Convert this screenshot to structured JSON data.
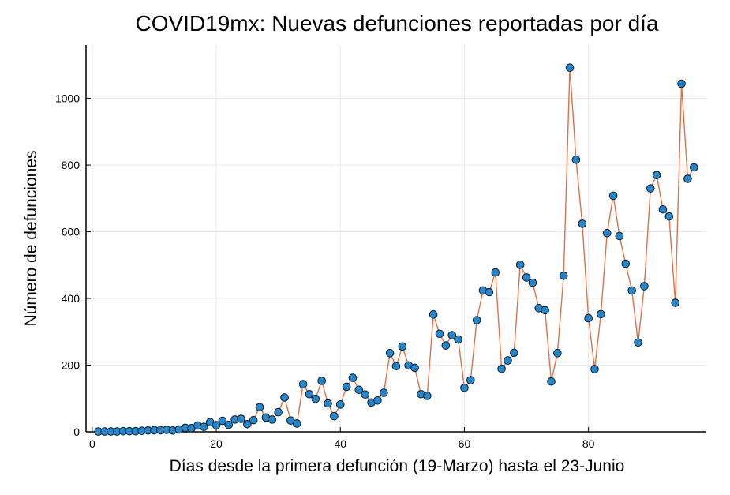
{
  "chart_data": {
    "type": "line",
    "title": "COVID19mx: Nuevas defunciones reportadas por día",
    "xlabel": "Días desde la primera defunción (19-Marzo) hasta el 23-Junio",
    "ylabel": "Número de defunciones",
    "xlim": [
      -1,
      99
    ],
    "ylim": [
      0,
      1160
    ],
    "xticks": [
      0,
      20,
      40,
      60,
      80
    ],
    "yticks": [
      0,
      200,
      400,
      600,
      800,
      1000
    ],
    "grid": true,
    "legend": "none",
    "line_color": "#e26f46",
    "marker_color": "#1f88d2",
    "marker_edge": "#1a1a1a",
    "series": [
      {
        "x": [
          1,
          2,
          3,
          4,
          5,
          6,
          7,
          8,
          9,
          10,
          11,
          12,
          13,
          14,
          15,
          16,
          17,
          18,
          19,
          20,
          21,
          22,
          23,
          24,
          25,
          26,
          27,
          28,
          29,
          30,
          31,
          32,
          33,
          34,
          35,
          36,
          37,
          38,
          39,
          40,
          41,
          42,
          43,
          44,
          45,
          46,
          47,
          48,
          49,
          50,
          51,
          52,
          53,
          54,
          55,
          56,
          57,
          58,
          59,
          60,
          61,
          62,
          63,
          64,
          65,
          66,
          67,
          68,
          69,
          70,
          71,
          72,
          73,
          74,
          75,
          76,
          77,
          78,
          79,
          80,
          81,
          82,
          83,
          84,
          85,
          86,
          87,
          88,
          89,
          90,
          91,
          92,
          93,
          94,
          95,
          96,
          97
        ],
        "values": [
          1,
          1,
          1,
          1,
          2,
          2,
          2,
          3,
          4,
          5,
          5,
          6,
          4,
          7,
          12,
          11,
          19,
          15,
          29,
          20,
          33,
          21,
          37,
          39,
          23,
          35,
          74,
          43,
          37,
          59,
          103,
          34,
          25,
          143,
          113,
          99,
          153,
          85,
          47,
          82,
          135,
          162,
          126,
          112,
          88,
          94,
          117,
          236,
          197,
          256,
          199,
          192,
          113,
          108,
          352,
          294,
          259,
          290,
          277,
          132,
          155,
          335,
          424,
          419,
          478,
          189,
          214,
          237,
          501,
          463,
          447,
          371,
          365,
          151,
          236,
          468,
          1092,
          816,
          624,
          341,
          188,
          353,
          596,
          708,
          587,
          504,
          424,
          268,
          437,
          730,
          770,
          667,
          646,
          387,
          1044,
          759,
          793
        ]
      }
    ]
  }
}
